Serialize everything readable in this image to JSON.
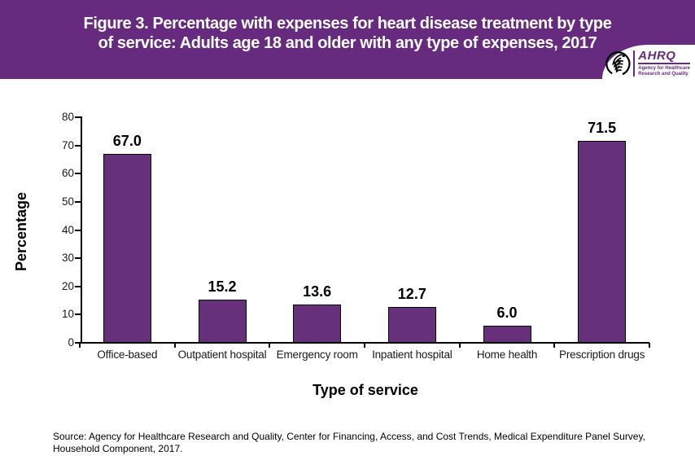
{
  "header": {
    "title_line1": "Figure 3. Percentage with expenses for heart disease treatment by type",
    "title_line2": "of service: Adults age 18 and older with any type of expenses, 2017",
    "background_color": "#662B7F"
  },
  "logo": {
    "name": "AHRQ",
    "tagline_line1": "Agency for Healthcare",
    "tagline_line2": "Research and Quality",
    "accent_color": "#662B7F"
  },
  "chart_data": {
    "type": "bar",
    "categories": [
      "Office-based",
      "Outpatient hospital",
      "Emergency room",
      "Inpatient hospital",
      "Home health",
      "Prescription drugs"
    ],
    "values": [
      67.0,
      15.2,
      13.6,
      12.7,
      6.0,
      71.5
    ],
    "xlabel": "Type of service",
    "ylabel": "Percentage",
    "ylim": [
      0,
      80
    ],
    "ytick_interval": 10,
    "ytick_labels": [
      "80",
      "70",
      "60",
      "50",
      "40",
      "30",
      "20",
      "10",
      "0"
    ],
    "grid": false,
    "legend": "none",
    "bar_color": "#66307A",
    "bar_border_color": "#000000"
  },
  "source_note": {
    "line1": "Source: Agency for Healthcare Research and Quality, Center for Financing, Access, and Cost Trends, Medical Expenditure Panel Survey,",
    "line2": "Household Component, 2017."
  }
}
